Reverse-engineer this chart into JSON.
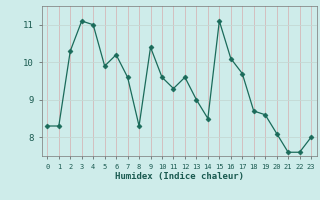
{
  "x": [
    0,
    1,
    2,
    3,
    4,
    5,
    6,
    7,
    8,
    9,
    10,
    11,
    12,
    13,
    14,
    15,
    16,
    17,
    18,
    19,
    20,
    21,
    22,
    23
  ],
  "y": [
    8.3,
    8.3,
    10.3,
    11.1,
    11.0,
    9.9,
    10.2,
    9.6,
    8.3,
    10.4,
    9.6,
    9.3,
    9.6,
    9.0,
    8.5,
    11.1,
    10.1,
    9.7,
    8.7,
    8.6,
    8.1,
    7.6,
    7.6,
    8.0
  ],
  "xlabel": "Humidex (Indice chaleur)",
  "xlim": [
    -0.5,
    23.5
  ],
  "ylim": [
    7.5,
    11.5
  ],
  "yticks": [
    8,
    9,
    10,
    11
  ],
  "xticks": [
    0,
    1,
    2,
    3,
    4,
    5,
    6,
    7,
    8,
    9,
    10,
    11,
    12,
    13,
    14,
    15,
    16,
    17,
    18,
    19,
    20,
    21,
    22,
    23
  ],
  "line_color": "#1a6b5a",
  "marker": "D",
  "marker_size": 2.5,
  "bg_color": "#ceecea",
  "grid_color_h": "#c4d8d4",
  "grid_color_v": "#d4b8b8"
}
